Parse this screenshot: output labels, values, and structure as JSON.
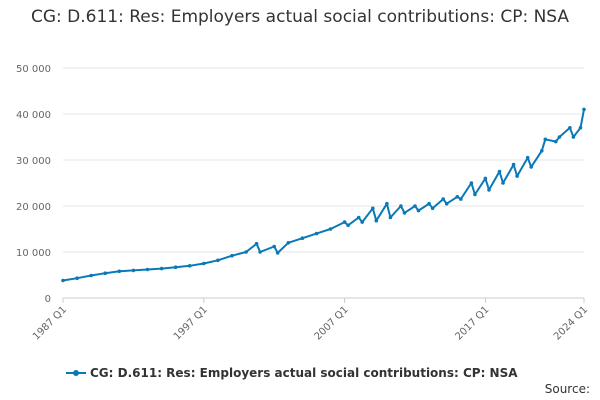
{
  "chart_data": {
    "type": "line",
    "title": "CG: D.611: Res: Employers actual social contributions: CP: NSA",
    "xlabel": "",
    "ylabel": "",
    "x_tick_labels": [
      "1987 Q1",
      "1997 Q1",
      "2007 Q1",
      "2017 Q1",
      "2024 Q1"
    ],
    "y_tick_labels": [
      "0",
      "10 000",
      "20 000",
      "30 000",
      "40 000",
      "50 000"
    ],
    "ylim": [
      0,
      50000
    ],
    "xlim": [
      "1987 Q1",
      "2024 Q1"
    ],
    "grid": true,
    "legend_position": "bottom",
    "series": [
      {
        "name": "CG: D.611: Res: Employers actual social contributions: CP: NSA",
        "color": "#0b79b8",
        "x": [
          "1987 Q1",
          "1988 Q1",
          "1989 Q1",
          "1990 Q1",
          "1991 Q1",
          "1992 Q1",
          "1993 Q1",
          "1994 Q1",
          "1995 Q1",
          "1996 Q1",
          "1997 Q1",
          "1998 Q1",
          "1999 Q1",
          "2000 Q1",
          "2000 Q4",
          "2001 Q1",
          "2002 Q1",
          "2002 Q2",
          "2003 Q1",
          "2004 Q1",
          "2005 Q1",
          "2006 Q1",
          "2007 Q1",
          "2007 Q2",
          "2008 Q1",
          "2008 Q2",
          "2009 Q1",
          "2009 Q2",
          "2010 Q1",
          "2010 Q2",
          "2011 Q1",
          "2011 Q2",
          "2012 Q1",
          "2012 Q2",
          "2013 Q1",
          "2013 Q2",
          "2014 Q1",
          "2014 Q2",
          "2015 Q1",
          "2015 Q2",
          "2016 Q1",
          "2016 Q2",
          "2017 Q1",
          "2017 Q2",
          "2018 Q1",
          "2018 Q2",
          "2019 Q1",
          "2019 Q2",
          "2020 Q1",
          "2020 Q2",
          "2021 Q1",
          "2021 Q2",
          "2022 Q1",
          "2022 Q2",
          "2023 Q1",
          "2023 Q2",
          "2023 Q4",
          "2024 Q1"
        ],
        "values": [
          3800,
          4300,
          4900,
          5400,
          5800,
          6000,
          6200,
          6400,
          6700,
          7000,
          7500,
          8200,
          9200,
          10000,
          11800,
          10000,
          11200,
          9800,
          12000,
          13000,
          14000,
          15000,
          16500,
          15800,
          17500,
          16500,
          19500,
          16800,
          20500,
          17500,
          20000,
          18500,
          20000,
          19000,
          20500,
          19500,
          21500,
          20500,
          22000,
          21500,
          25000,
          22500,
          26000,
          23500,
          27500,
          25000,
          29000,
          26500,
          30500,
          28500,
          32000,
          34500,
          34000,
          35000,
          37000,
          35000,
          37000,
          41000
        ]
      }
    ]
  },
  "legend": {
    "label": "CG: D.611: Res: Employers actual social contributions: CP: NSA"
  },
  "footer": {
    "source_label": "Source:"
  }
}
